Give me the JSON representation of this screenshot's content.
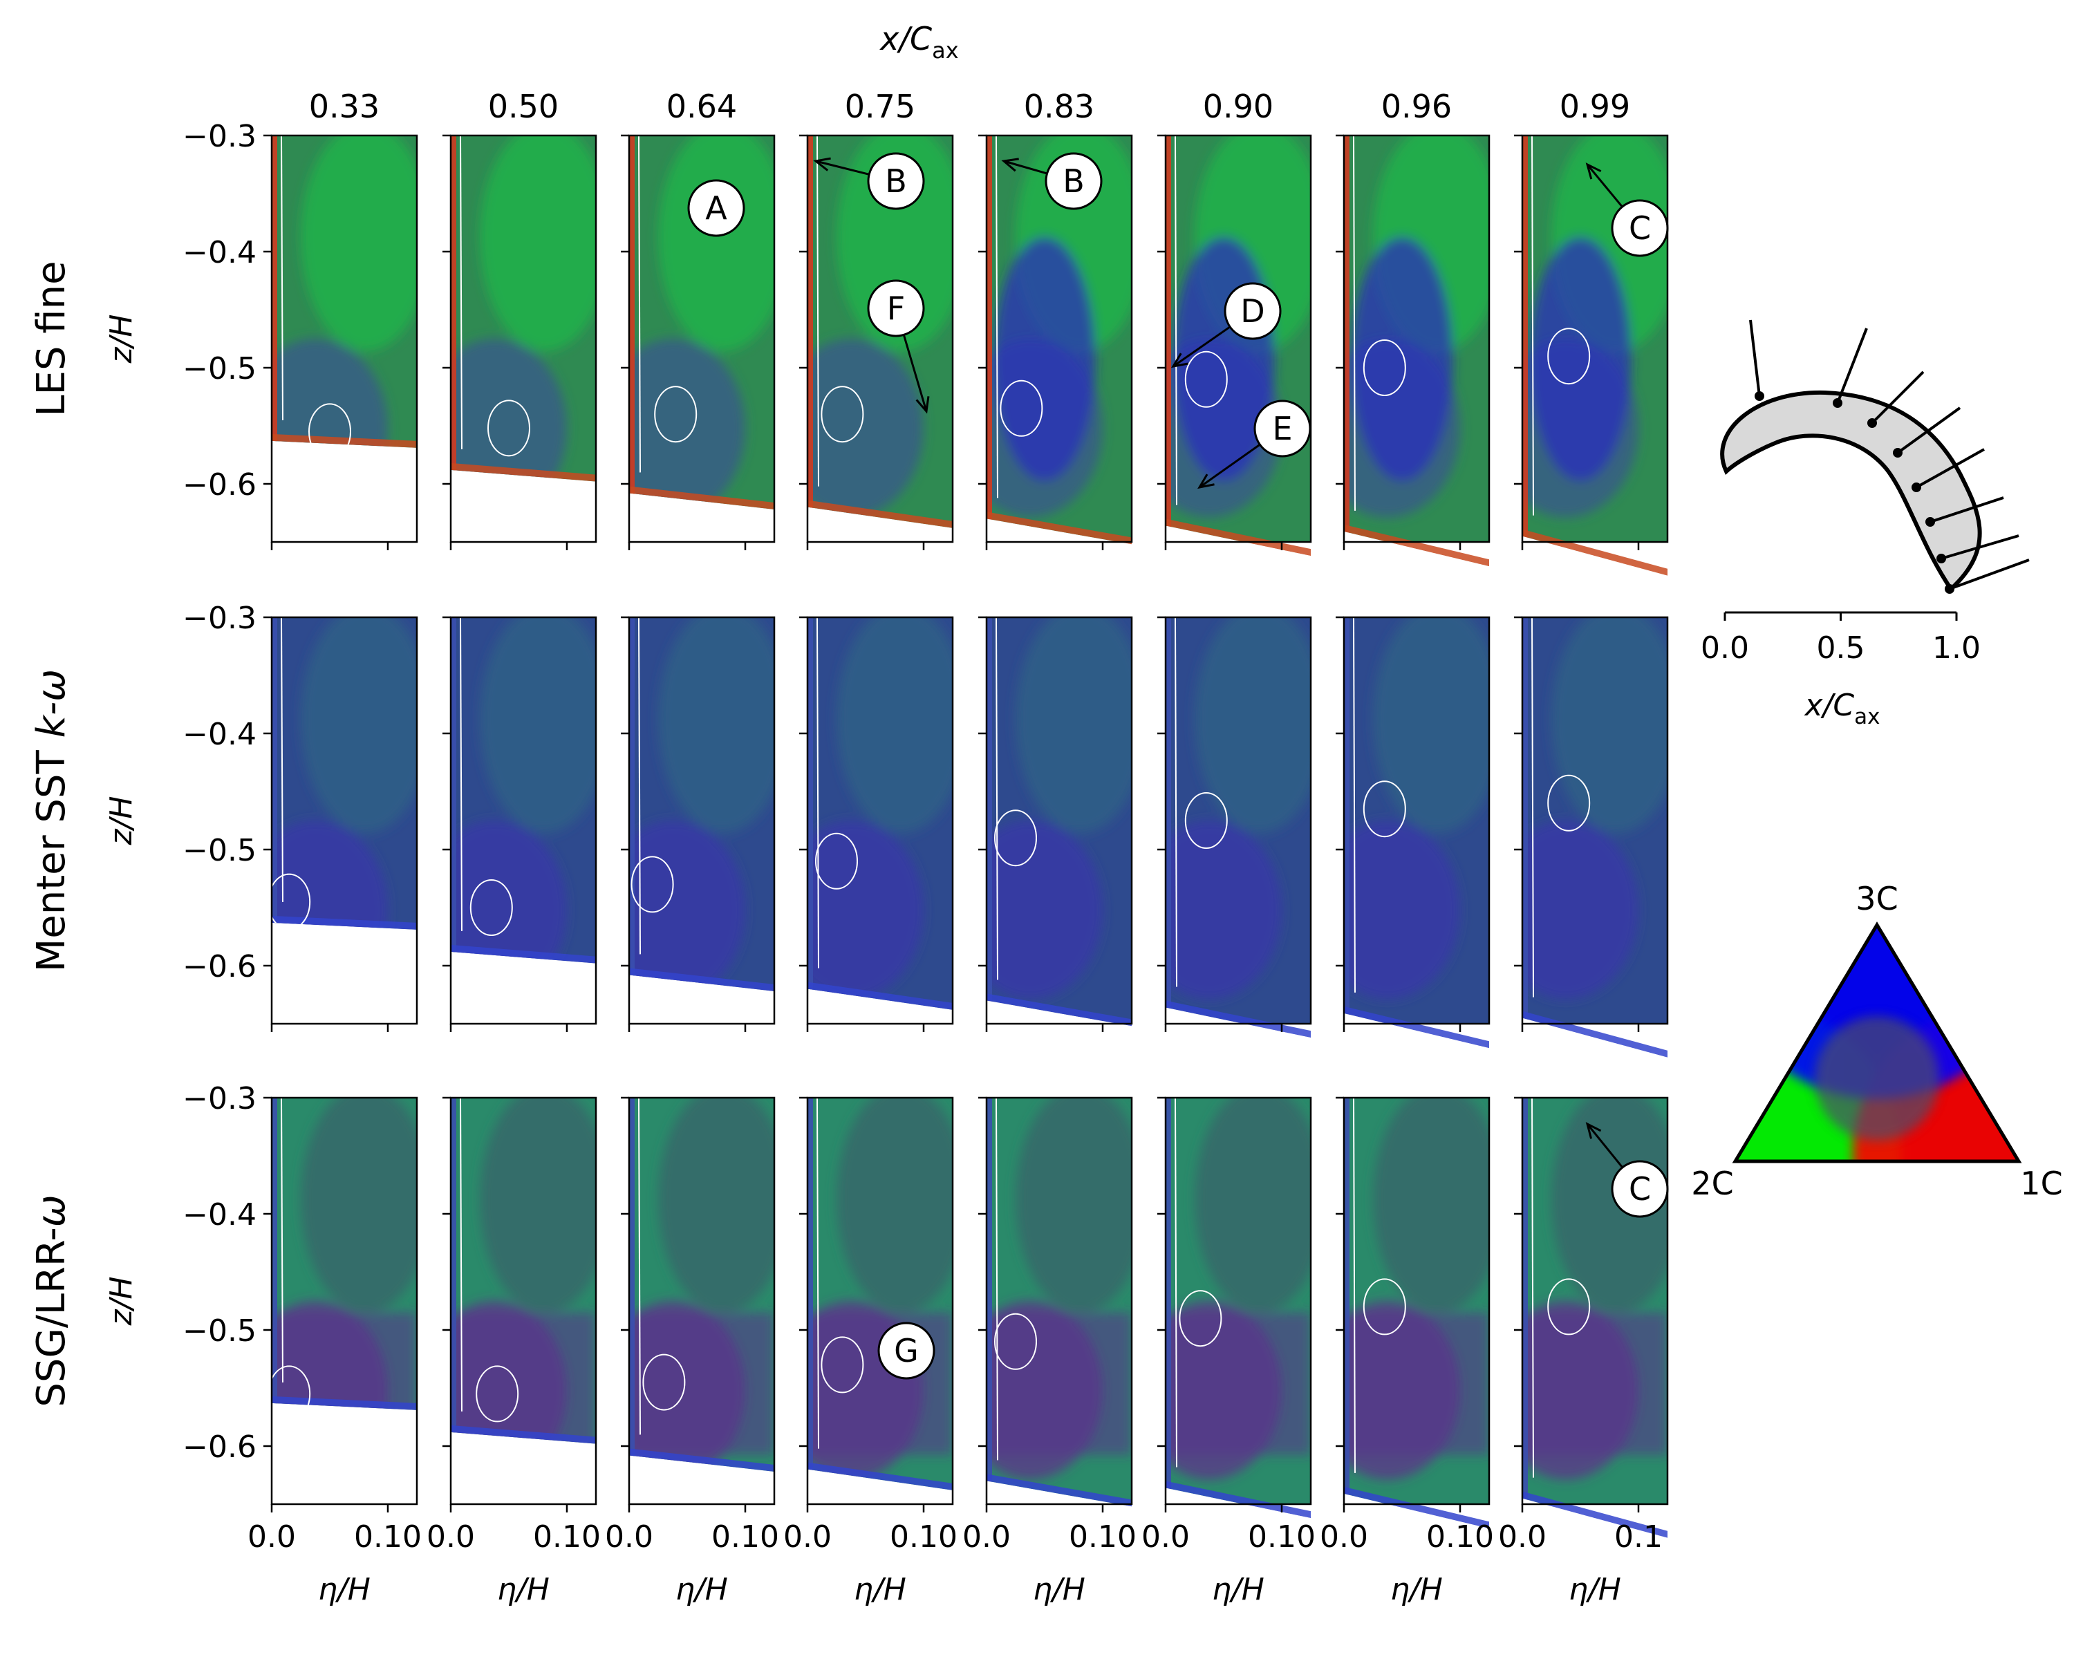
{
  "figure": {
    "top_axis_label_main": "x/C",
    "top_axis_label_sub": "ax"
  },
  "chart_data": {
    "type": "heatmap",
    "description_variable": "anisotropy componentality (barycentric RGB map)",
    "columns_xC": [
      "0.33",
      "0.50",
      "0.64",
      "0.75",
      "0.83",
      "0.90",
      "0.96",
      "0.99"
    ],
    "rows": [
      {
        "label": "LES fine",
        "label_italic_suffix": ""
      },
      {
        "label": "Menter SST ",
        "label_italic_suffix": "k-ω"
      },
      {
        "label": "SSG/LRR-",
        "label_italic_suffix": "ω"
      }
    ],
    "ylabel": "z/H",
    "xlabel": "η/H",
    "ylim": [
      -0.65,
      -0.3
    ],
    "yticks": [
      "−0.3",
      "−0.4",
      "−0.5",
      "−0.6"
    ],
    "xlim": [
      0.0,
      0.125
    ],
    "xtick_labels": [
      [
        "0.0",
        "0.10"
      ],
      [
        "0.0",
        "0.10"
      ],
      [
        "0.0",
        "0.10"
      ],
      [
        "0.0",
        "0.10"
      ],
      [
        "0.0",
        "0.10"
      ],
      [
        "0.0",
        "0.10"
      ],
      [
        "0.0",
        "0.10"
      ],
      [
        "0.0",
        "0.1"
      ]
    ],
    "endwall_z": [
      -0.563,
      -0.588,
      -0.608,
      -0.62,
      -0.63,
      -0.636,
      -0.641,
      -0.645
    ],
    "vortex_centers": [
      [
        [
          0.05,
          -0.555
        ],
        [
          0.05,
          -0.552
        ],
        [
          0.04,
          -0.54
        ],
        [
          0.03,
          -0.54
        ],
        [
          0.03,
          -0.535
        ],
        [
          0.035,
          -0.51
        ],
        [
          0.035,
          -0.5
        ],
        [
          0.04,
          -0.49
        ]
      ],
      [
        [
          0.015,
          -0.545
        ],
        [
          0.035,
          -0.55
        ],
        [
          0.02,
          -0.53
        ],
        [
          0.025,
          -0.51
        ],
        [
          0.025,
          -0.49
        ],
        [
          0.035,
          -0.475
        ],
        [
          0.035,
          -0.465
        ],
        [
          0.04,
          -0.46
        ]
      ],
      [
        [
          0.015,
          -0.555
        ],
        [
          0.04,
          -0.555
        ],
        [
          0.03,
          -0.545
        ],
        [
          0.03,
          -0.53
        ],
        [
          0.025,
          -0.51
        ],
        [
          0.03,
          -0.49
        ],
        [
          0.035,
          -0.48
        ],
        [
          0.04,
          -0.48
        ]
      ]
    ],
    "annotations": [
      {
        "label": "A",
        "row": 0,
        "col": 2
      },
      {
        "label": "B",
        "row": 0,
        "col": 3
      },
      {
        "label": "B",
        "row": 0,
        "col": 4
      },
      {
        "label": "F",
        "row": 0,
        "col": 3
      },
      {
        "label": "D",
        "row": 0,
        "col": 5
      },
      {
        "label": "E",
        "row": 0,
        "col": 5
      },
      {
        "label": "C",
        "row": 0,
        "col": 7
      },
      {
        "label": "C",
        "row": 2,
        "col": 7
      },
      {
        "label": "G",
        "row": 2,
        "col": 3
      }
    ],
    "blade_inset": {
      "xticks": [
        "0.0",
        "0.5",
        "1.0"
      ],
      "xlabel_main": "x/C",
      "xlabel_sub": "ax",
      "stations": [
        0.33,
        0.5,
        0.64,
        0.75,
        0.83,
        0.9,
        0.96,
        0.99
      ]
    },
    "barycentric_legend": {
      "vertex_top": "3C",
      "vertex_left": "2C",
      "vertex_right": "1C",
      "colors": {
        "3C": "#0000ff",
        "2C": "#00ff00",
        "1C": "#ff0000"
      }
    }
  }
}
